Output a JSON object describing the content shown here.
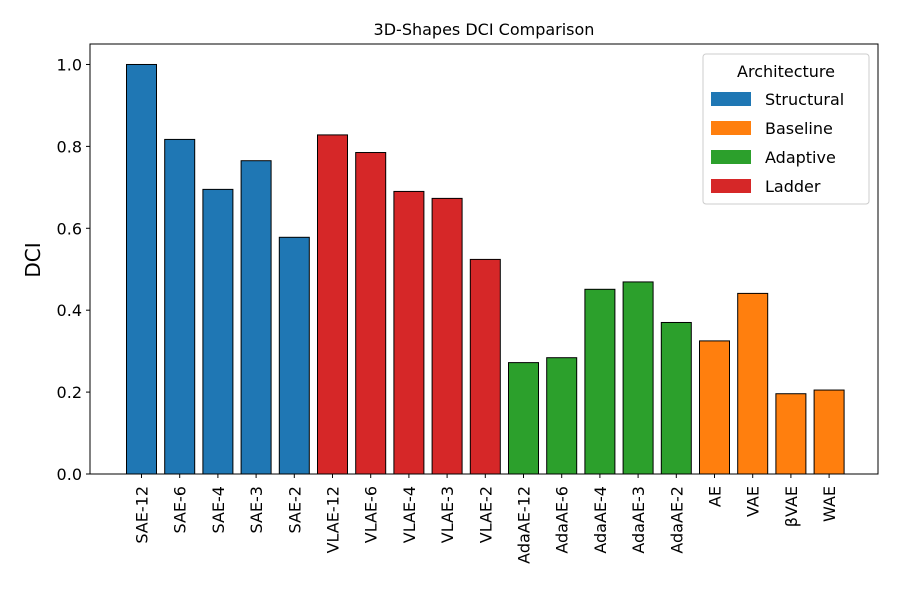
{
  "chart_data": {
    "type": "bar",
    "title": "3D-Shapes DCI Comparison",
    "xlabel": "",
    "ylabel": "DCI",
    "ylim": [
      0,
      1.05
    ],
    "yticks": [
      "0.0",
      "0.2",
      "0.4",
      "0.6",
      "0.8",
      "1.0"
    ],
    "grid": false,
    "legend": {
      "title": "Architecture",
      "placement": "top-right",
      "entries": [
        {
          "name": "Structural",
          "color": "#1f77b4"
        },
        {
          "name": "Baseline",
          "color": "#ff7f0e"
        },
        {
          "name": "Adaptive",
          "color": "#2ca02c"
        },
        {
          "name": "Ladder",
          "color": "#d62728"
        }
      ]
    },
    "categories": [
      "SAE-12",
      "SAE-6",
      "SAE-4",
      "SAE-3",
      "SAE-2",
      "VLAE-12",
      "VLAE-6",
      "VLAE-4",
      "VLAE-3",
      "VLAE-2",
      "AdaAE-12",
      "AdaAE-6",
      "AdaAE-4",
      "AdaAE-3",
      "AdaAE-2",
      "AE",
      "VAE",
      "βVAE",
      "WAE"
    ],
    "values": [
      1.0,
      0.817,
      0.695,
      0.765,
      0.578,
      0.828,
      0.785,
      0.69,
      0.673,
      0.524,
      0.272,
      0.284,
      0.451,
      0.469,
      0.37,
      0.325,
      0.441,
      0.196,
      0.205
    ],
    "groups": [
      "Structural",
      "Structural",
      "Structural",
      "Structural",
      "Structural",
      "Ladder",
      "Ladder",
      "Ladder",
      "Ladder",
      "Ladder",
      "Adaptive",
      "Adaptive",
      "Adaptive",
      "Adaptive",
      "Adaptive",
      "Baseline",
      "Baseline",
      "Baseline",
      "Baseline"
    ]
  }
}
